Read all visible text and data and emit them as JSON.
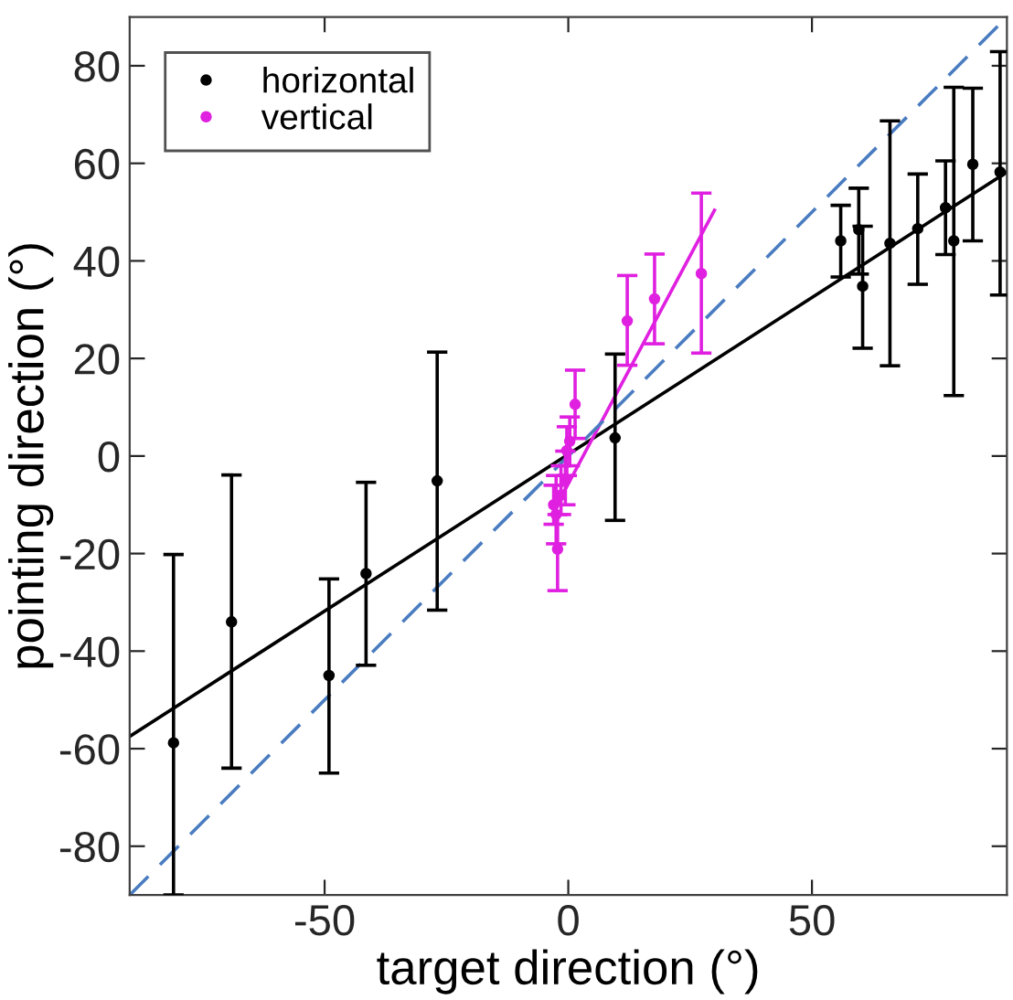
{
  "chart_data": {
    "type": "scatter",
    "xlabel": "target direction (°)",
    "ylabel": "pointing direction (°)",
    "xlim": [
      -90,
      90
    ],
    "ylim": [
      -90,
      90
    ],
    "xticks": [
      -50,
      0,
      50
    ],
    "yticks": [
      -80,
      -60,
      -40,
      -20,
      0,
      20,
      40,
      60,
      80
    ],
    "grid": false,
    "legend": "top left",
    "series": [
      {
        "name": "horizontal",
        "marker": "circle",
        "color": "#000000",
        "x": [
          -81,
          -69.1,
          -49.1,
          -41.5,
          -26.9,
          9.6,
          55.9,
          59.6,
          60.4,
          66,
          71.7,
          77.4,
          79.1,
          83,
          88.6
        ],
        "values": [
          -58.8,
          -34,
          -45,
          -24.1,
          -5.1,
          3.7,
          44.1,
          46.4,
          34.8,
          43.6,
          46.6,
          50.9,
          44.1,
          59.8,
          58.2
        ],
        "errors": [
          [
            -90,
            -20.2
          ],
          [
            -64,
            -3.9
          ],
          [
            -65,
            -25.2
          ],
          [
            -42.9,
            -5.4
          ],
          [
            -31.6,
            21.3
          ],
          [
            -13.2,
            20.9
          ],
          [
            36.7,
            51.4
          ],
          [
            37.3,
            54.9
          ],
          [
            22.1,
            47.1
          ],
          [
            18.5,
            68.7
          ],
          [
            35.2,
            57.8
          ],
          [
            41.3,
            60.5
          ],
          [
            12.4,
            75.6
          ],
          [
            44.1,
            75.4
          ],
          [
            33,
            82.9
          ]
        ]
      },
      {
        "name": "vertical",
        "marker": "circle",
        "color": "#e020e0",
        "x": [
          -3,
          -2.5,
          -2.2,
          -1.5,
          -0.6,
          -0.3,
          0.3,
          1.4,
          12.1,
          17.7,
          27.3
        ],
        "values": [
          -10,
          -12,
          -19.1,
          -8,
          -5,
          1.1,
          3,
          10.6,
          27.7,
          32.2,
          37.4
        ],
        "errors": [
          [
            -14,
            -6
          ],
          [
            -18,
            -4
          ],
          [
            -27.6,
            -12
          ],
          [
            -12,
            -2
          ],
          [
            -10,
            1
          ],
          [
            -4,
            6
          ],
          [
            -2,
            8
          ],
          [
            3.6,
            17.6
          ],
          [
            18.6,
            37
          ],
          [
            23,
            41.4
          ],
          [
            21.1,
            53.9
          ]
        ]
      },
      {
        "type": "line",
        "marker": "none",
        "line_style": "solid",
        "color": "#000000",
        "x": [
          -90,
          90
        ],
        "values": [
          -57.5,
          58.2
        ]
      },
      {
        "type": "line",
        "marker": "none",
        "line_style": "solid",
        "color": "#e020e0",
        "x": [
          -3,
          30
        ],
        "values": [
          -11.3,
          50.4
        ]
      },
      {
        "type": "line",
        "marker": "none",
        "line_style": "dashed",
        "color": "#4a7cc0",
        "x": [
          -90,
          90
        ],
        "values": [
          -90,
          90
        ]
      }
    ]
  }
}
